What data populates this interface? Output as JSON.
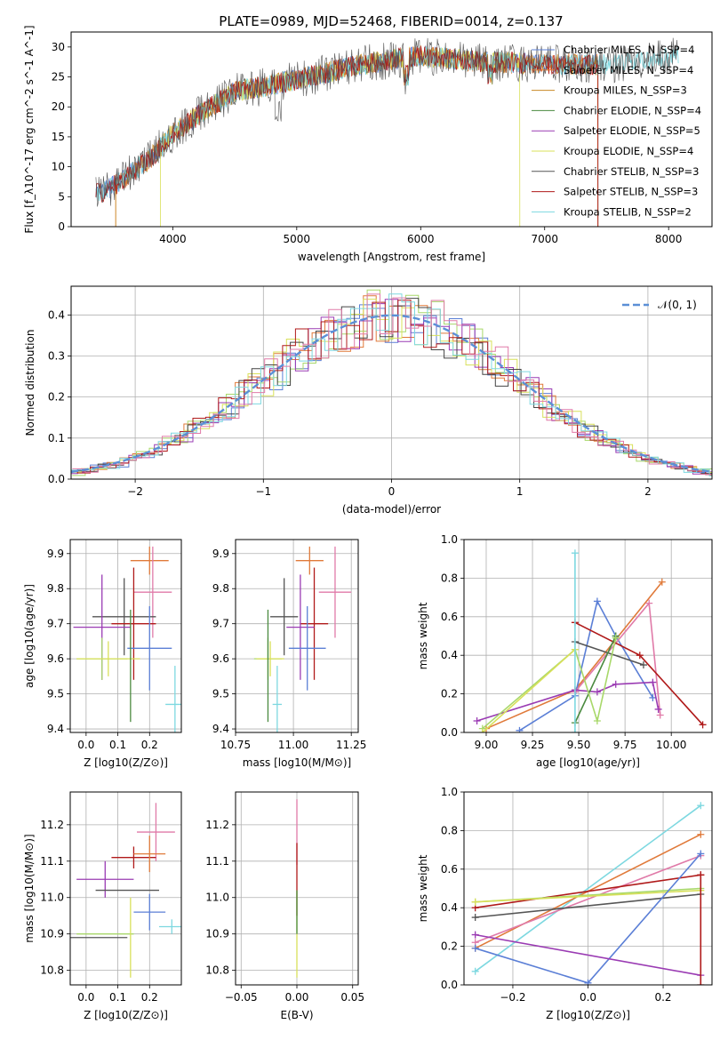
{
  "title": "PLATE=0989, MJD=52468, FIBERID=0014, z=0.137",
  "colors": {
    "Chabrier MILES": "#5b7fd6",
    "Salpeter MILES": "#e07a3a",
    "Kroupa MILES": "#c98a26",
    "Chabrier ELODIE": "#4a8a3f",
    "Salpeter ELODIE": "#9a3bb3",
    "Kroupa ELODIE": "#d8e05a",
    "Chabrier STELIB": "#555555",
    "Salpeter STELIB": "#b01a1a",
    "Kroupa STELIB": "#7dd8e0",
    "hist_blue": "#5b7fd6",
    "hist_orange": "#e07a3a",
    "hist_green": "#a8d86a",
    "hist_purple": "#9a3bb3",
    "hist_lime": "#d8e05a",
    "hist_dark": "#444444",
    "hist_red": "#b01a1a",
    "hist_cyan": "#7dd8e0",
    "hist_pink": "#e07aa8"
  },
  "chart_data": [
    {
      "id": "spectrum",
      "type": "line",
      "xlabel": "wavelength [Angstrom, rest frame]",
      "ylabel": "Flux [f_λ10^-17 erg cm^-2 s^-1 A^-1]",
      "xlim": [
        3180,
        8350
      ],
      "ylim": [
        0,
        32.5
      ],
      "xticks": [
        "4000",
        "5000",
        "6000",
        "7000",
        "8000"
      ],
      "yticks": [
        "0",
        "5",
        "10",
        "15",
        "20",
        "25",
        "30"
      ],
      "legend": [
        "Chabrier MILES, N_SSP=4",
        "Salpeter MILES, N_SSP=4",
        "Kroupa MILES, N_SSP=3",
        "Chabrier ELODIE, N_SSP=4",
        "Salpeter ELODIE, N_SSP=5",
        "Kroupa ELODIE, N_SSP=4",
        "Chabrier STELIB, N_SSP=3",
        "Salpeter STELIB, N_SSP=3",
        "Kroupa STELIB, N_SSP=2"
      ],
      "legend_position": "right",
      "envelope_x": [
        3380,
        3500,
        3600,
        3800,
        4000,
        4200,
        4500,
        5000,
        5500,
        6000,
        6500,
        7000,
        7400,
        7800,
        8080
      ],
      "envelope_y": [
        5.5,
        6.5,
        8.0,
        11.0,
        15.5,
        18.5,
        22.5,
        24.5,
        27.0,
        28.5,
        27.5,
        27.2,
        27.0,
        27.5,
        28.5
      ]
    },
    {
      "id": "residuals",
      "type": "line",
      "xlabel": "(data-model)/error",
      "ylabel": "Normed distribution",
      "xlim": [
        -2.5,
        2.5
      ],
      "ylim": [
        0,
        0.47
      ],
      "xticks": [
        "−2",
        "−1",
        "0",
        "1",
        "2"
      ],
      "yticks": [
        "0.0",
        "0.1",
        "0.2",
        "0.3",
        "0.4"
      ],
      "legend": [
        "𝒩(0, 1)"
      ],
      "legend_position": "top-right",
      "grid": true
    },
    {
      "id": "age-vs-Z",
      "type": "scatter",
      "xlabel": "Z [log10(Z/Z⊙)]",
      "ylabel": "age [log10(age/yr)]",
      "xlim": [
        -0.05,
        0.3
      ],
      "ylim": [
        9.39,
        9.94
      ],
      "xticks": [
        "0.0",
        "0.1",
        "0.2"
      ],
      "yticks": [
        "9.4",
        "9.5",
        "9.6",
        "9.7",
        "9.8",
        "9.9"
      ],
      "grid": true,
      "points": [
        {
          "x": 0.2,
          "y": 9.88,
          "xerr": 0.06,
          "yerr": 0.04,
          "c": "#e07a3a"
        },
        {
          "x": 0.21,
          "y": 9.79,
          "xerr": 0.06,
          "yerr": 0.13,
          "c": "#e07aa8"
        },
        {
          "x": 0.12,
          "y": 9.72,
          "xerr": 0.1,
          "yerr": 0.11,
          "c": "#555555"
        },
        {
          "x": 0.15,
          "y": 9.7,
          "xerr": 0.07,
          "yerr": 0.16,
          "c": "#b01a1a"
        },
        {
          "x": 0.05,
          "y": 9.69,
          "xerr": 0.09,
          "yerr": 0.15,
          "c": "#9a3bb3"
        },
        {
          "x": 0.2,
          "y": 9.63,
          "xerr": 0.07,
          "yerr": 0.12,
          "c": "#5b7fd6"
        },
        {
          "x": 0.05,
          "y": 9.6,
          "xerr": 0.08,
          "yerr": 0.06,
          "c": "#a8d86a"
        },
        {
          "x": 0.07,
          "y": 9.6,
          "xerr": 0.1,
          "yerr": 0.05,
          "c": "#d8e05a"
        },
        {
          "x": 0.14,
          "y": 9.58,
          "xerr": 0.0,
          "yerr": 0.16,
          "c": "#4a8a3f"
        },
        {
          "x": 0.28,
          "y": 9.47,
          "xerr": 0.03,
          "yerr": 0.11,
          "c": "#7dd8e0"
        }
      ]
    },
    {
      "id": "age-vs-mass",
      "type": "scatter",
      "xlabel": "mass [log10(M/M⊙)]",
      "ylabel": "",
      "xlim": [
        10.75,
        11.28
      ],
      "ylim": [
        9.39,
        9.94
      ],
      "xticks": [
        "10.75",
        "11.00",
        "11.25"
      ],
      "yticks": [
        "9.4",
        "9.5",
        "9.6",
        "9.7",
        "9.8",
        "9.9"
      ],
      "grid": true,
      "points": [
        {
          "x": 11.07,
          "y": 9.88,
          "xerr": 0.06,
          "yerr": 0.04,
          "c": "#e07a3a"
        },
        {
          "x": 11.18,
          "y": 9.79,
          "xerr": 0.07,
          "yerr": 0.13,
          "c": "#e07aa8"
        },
        {
          "x": 10.96,
          "y": 9.72,
          "xerr": 0.06,
          "yerr": 0.11,
          "c": "#555555"
        },
        {
          "x": 11.09,
          "y": 9.7,
          "xerr": 0.06,
          "yerr": 0.16,
          "c": "#b01a1a"
        },
        {
          "x": 11.03,
          "y": 9.69,
          "xerr": 0.06,
          "yerr": 0.15,
          "c": "#9a3bb3"
        },
        {
          "x": 11.06,
          "y": 9.63,
          "xerr": 0.08,
          "yerr": 0.12,
          "c": "#5b7fd6"
        },
        {
          "x": 10.89,
          "y": 9.6,
          "xerr": 0.06,
          "yerr": 0.06,
          "c": "#a8d86a"
        },
        {
          "x": 10.9,
          "y": 9.6,
          "xerr": 0.06,
          "yerr": 0.05,
          "c": "#d8e05a"
        },
        {
          "x": 10.89,
          "y": 9.58,
          "xerr": 0.0,
          "yerr": 0.16,
          "c": "#4a8a3f"
        },
        {
          "x": 10.93,
          "y": 9.47,
          "xerr": 0.02,
          "yerr": 0.11,
          "c": "#7dd8e0"
        }
      ]
    },
    {
      "id": "weight-vs-age",
      "type": "line",
      "xlabel": "age [log10(age/yr)]",
      "ylabel": "mass weight",
      "xlim": [
        8.88,
        10.22
      ],
      "ylim": [
        0,
        1.0
      ],
      "xticks": [
        "9.00",
        "9.25",
        "9.50",
        "9.75",
        "10.00"
      ],
      "yticks": [
        "0.0",
        "0.2",
        "0.4",
        "0.6",
        "0.8",
        "1.0"
      ],
      "grid": true,
      "series": [
        {
          "c": "#e07a3a",
          "x": [
            9.0,
            9.48,
            9.95
          ],
          "y": [
            0.02,
            0.22,
            0.78
          ]
        },
        {
          "c": "#5b7fd6",
          "x": [
            9.18,
            9.48,
            9.6,
            9.7,
            9.9
          ],
          "y": [
            0.01,
            0.19,
            0.68,
            0.5,
            0.18
          ]
        },
        {
          "c": "#e07aa8",
          "x": [
            9.48,
            9.88,
            9.94
          ],
          "y": [
            0.21,
            0.67,
            0.09
          ]
        },
        {
          "c": "#9a3bb3",
          "x": [
            8.95,
            9.48,
            9.6,
            9.7,
            9.9,
            9.93
          ],
          "y": [
            0.06,
            0.22,
            0.21,
            0.25,
            0.26,
            0.12
          ]
        },
        {
          "c": "#b01a1a",
          "x": [
            9.48,
            9.83,
            10.17
          ],
          "y": [
            0.57,
            0.4,
            0.04
          ]
        },
        {
          "c": "#555555",
          "x": [
            9.48,
            9.85
          ],
          "y": [
            0.47,
            0.35
          ]
        },
        {
          "c": "#4a8a3f",
          "x": [
            9.48,
            9.7
          ],
          "y": [
            0.05,
            0.5
          ]
        },
        {
          "c": "#a8d86a",
          "x": [
            8.98,
            9.48,
            9.6,
            9.7
          ],
          "y": [
            0.02,
            0.43,
            0.06,
            0.49
          ]
        },
        {
          "c": "#d8e05a",
          "x": [
            8.98,
            9.48
          ],
          "y": [
            0.0,
            0.43
          ]
        },
        {
          "c": "#7dd8e0",
          "x": [
            9.48,
            9.48
          ],
          "y": [
            0.93,
            0.0
          ]
        }
      ]
    },
    {
      "id": "mass-vs-Z",
      "type": "scatter",
      "xlabel": "Z [log10(Z/Z⊙)]",
      "ylabel": "mass [log10(M/M⊙)]",
      "xlim": [
        -0.05,
        0.3
      ],
      "ylim": [
        10.76,
        11.29
      ],
      "xticks": [
        "0.0",
        "0.1",
        "0.2"
      ],
      "yticks": [
        "10.8",
        "10.9",
        "11.0",
        "11.1",
        "11.2"
      ],
      "grid": true,
      "points": [
        {
          "x": 0.22,
          "y": 11.18,
          "xerr": 0.06,
          "yerr": 0.08,
          "c": "#e07aa8"
        },
        {
          "x": 0.15,
          "y": 11.11,
          "xerr": 0.07,
          "yerr": 0.03,
          "c": "#b01a1a"
        },
        {
          "x": 0.2,
          "y": 11.12,
          "xerr": 0.05,
          "yerr": 0.05,
          "c": "#e07a3a"
        },
        {
          "x": 0.06,
          "y": 11.05,
          "xerr": 0.09,
          "yerr": 0.05,
          "c": "#9a3bb3"
        },
        {
          "x": 0.13,
          "y": 11.02,
          "xerr": 0.1,
          "yerr": 0.0,
          "c": "#555555"
        },
        {
          "x": 0.2,
          "y": 10.96,
          "xerr": 0.05,
          "yerr": 0.05,
          "c": "#5b7fd6"
        },
        {
          "x": 0.27,
          "y": 10.92,
          "xerr": 0.04,
          "yerr": 0.02,
          "c": "#7dd8e0"
        },
        {
          "x": 0.06,
          "y": 10.9,
          "xerr": 0.09,
          "yerr": 0.0,
          "c": "#a8d86a"
        },
        {
          "x": 0.14,
          "y": 10.89,
          "xerr": 0.0,
          "yerr": 0.11,
          "c": "#d8e05a"
        },
        {
          "x": 0.04,
          "y": 10.89,
          "xerr": 0.09,
          "yerr": 0.0,
          "c": "#555555"
        }
      ]
    },
    {
      "id": "mass-vs-EBV",
      "type": "scatter",
      "xlabel": "E(B-V)",
      "ylabel": "",
      "xlim": [
        -0.055,
        0.055
      ],
      "ylim": [
        10.76,
        11.29
      ],
      "xticks": [
        "−0.05",
        "0.00",
        "0.05"
      ],
      "yticks": [
        "10.8",
        "10.9",
        "11.0",
        "11.1",
        "11.2"
      ],
      "grid": true,
      "points": [
        {
          "x": 0.0,
          "y": 11.18,
          "xerr": 0.0,
          "yerr": 0.09,
          "c": "#e07aa8"
        },
        {
          "x": 0.0,
          "y": 11.05,
          "xerr": 0.0,
          "yerr": 0.1,
          "c": "#b01a1a"
        },
        {
          "x": 0.0,
          "y": 10.9,
          "xerr": 0.0,
          "yerr": 0.12,
          "c": "#d8e05a"
        },
        {
          "x": 0.0,
          "y": 10.96,
          "xerr": 0.0,
          "yerr": 0.06,
          "c": "#4a8a3f"
        }
      ]
    },
    {
      "id": "weight-vs-Z",
      "type": "line",
      "xlabel": "Z [log10(Z/Z⊙)]",
      "ylabel": "mass weight",
      "xlim": [
        -0.33,
        0.33
      ],
      "ylim": [
        0,
        1.0
      ],
      "xticks": [
        "−0.2",
        "0.0",
        "0.2"
      ],
      "yticks": [
        "0.0",
        "0.2",
        "0.4",
        "0.6",
        "0.8",
        "1.0"
      ],
      "grid": true,
      "series": [
        {
          "c": "#7dd8e0",
          "x": [
            -0.3,
            0.3
          ],
          "y": [
            0.07,
            0.93
          ]
        },
        {
          "c": "#e07a3a",
          "x": [
            -0.3,
            0.3
          ],
          "y": [
            0.19,
            0.78
          ]
        },
        {
          "c": "#e07aa8",
          "x": [
            -0.3,
            0.3
          ],
          "y": [
            0.22,
            0.67
          ]
        },
        {
          "c": "#b01a1a",
          "x": [
            -0.3,
            0.3
          ],
          "y": [
            0.4,
            0.57
          ]
        },
        {
          "c": "#a8d86a",
          "x": [
            -0.3,
            0.3
          ],
          "y": [
            0.43,
            0.5
          ]
        },
        {
          "c": "#d8e05a",
          "x": [
            -0.3,
            0.3
          ],
          "y": [
            0.43,
            0.49
          ]
        },
        {
          "c": "#555555",
          "x": [
            -0.3,
            0.3
          ],
          "y": [
            0.35,
            0.47
          ]
        },
        {
          "c": "#5b7fd6",
          "x": [
            -0.3,
            0.0,
            0.3
          ],
          "y": [
            0.19,
            0.01,
            0.68
          ]
        },
        {
          "c": "#9a3bb3",
          "x": [
            -0.3,
            0.3
          ],
          "y": [
            0.26,
            0.05
          ]
        },
        {
          "c": "#b01a1a",
          "x": [
            0.3,
            0.3
          ],
          "y": [
            0.57,
            0.0
          ]
        }
      ]
    }
  ]
}
